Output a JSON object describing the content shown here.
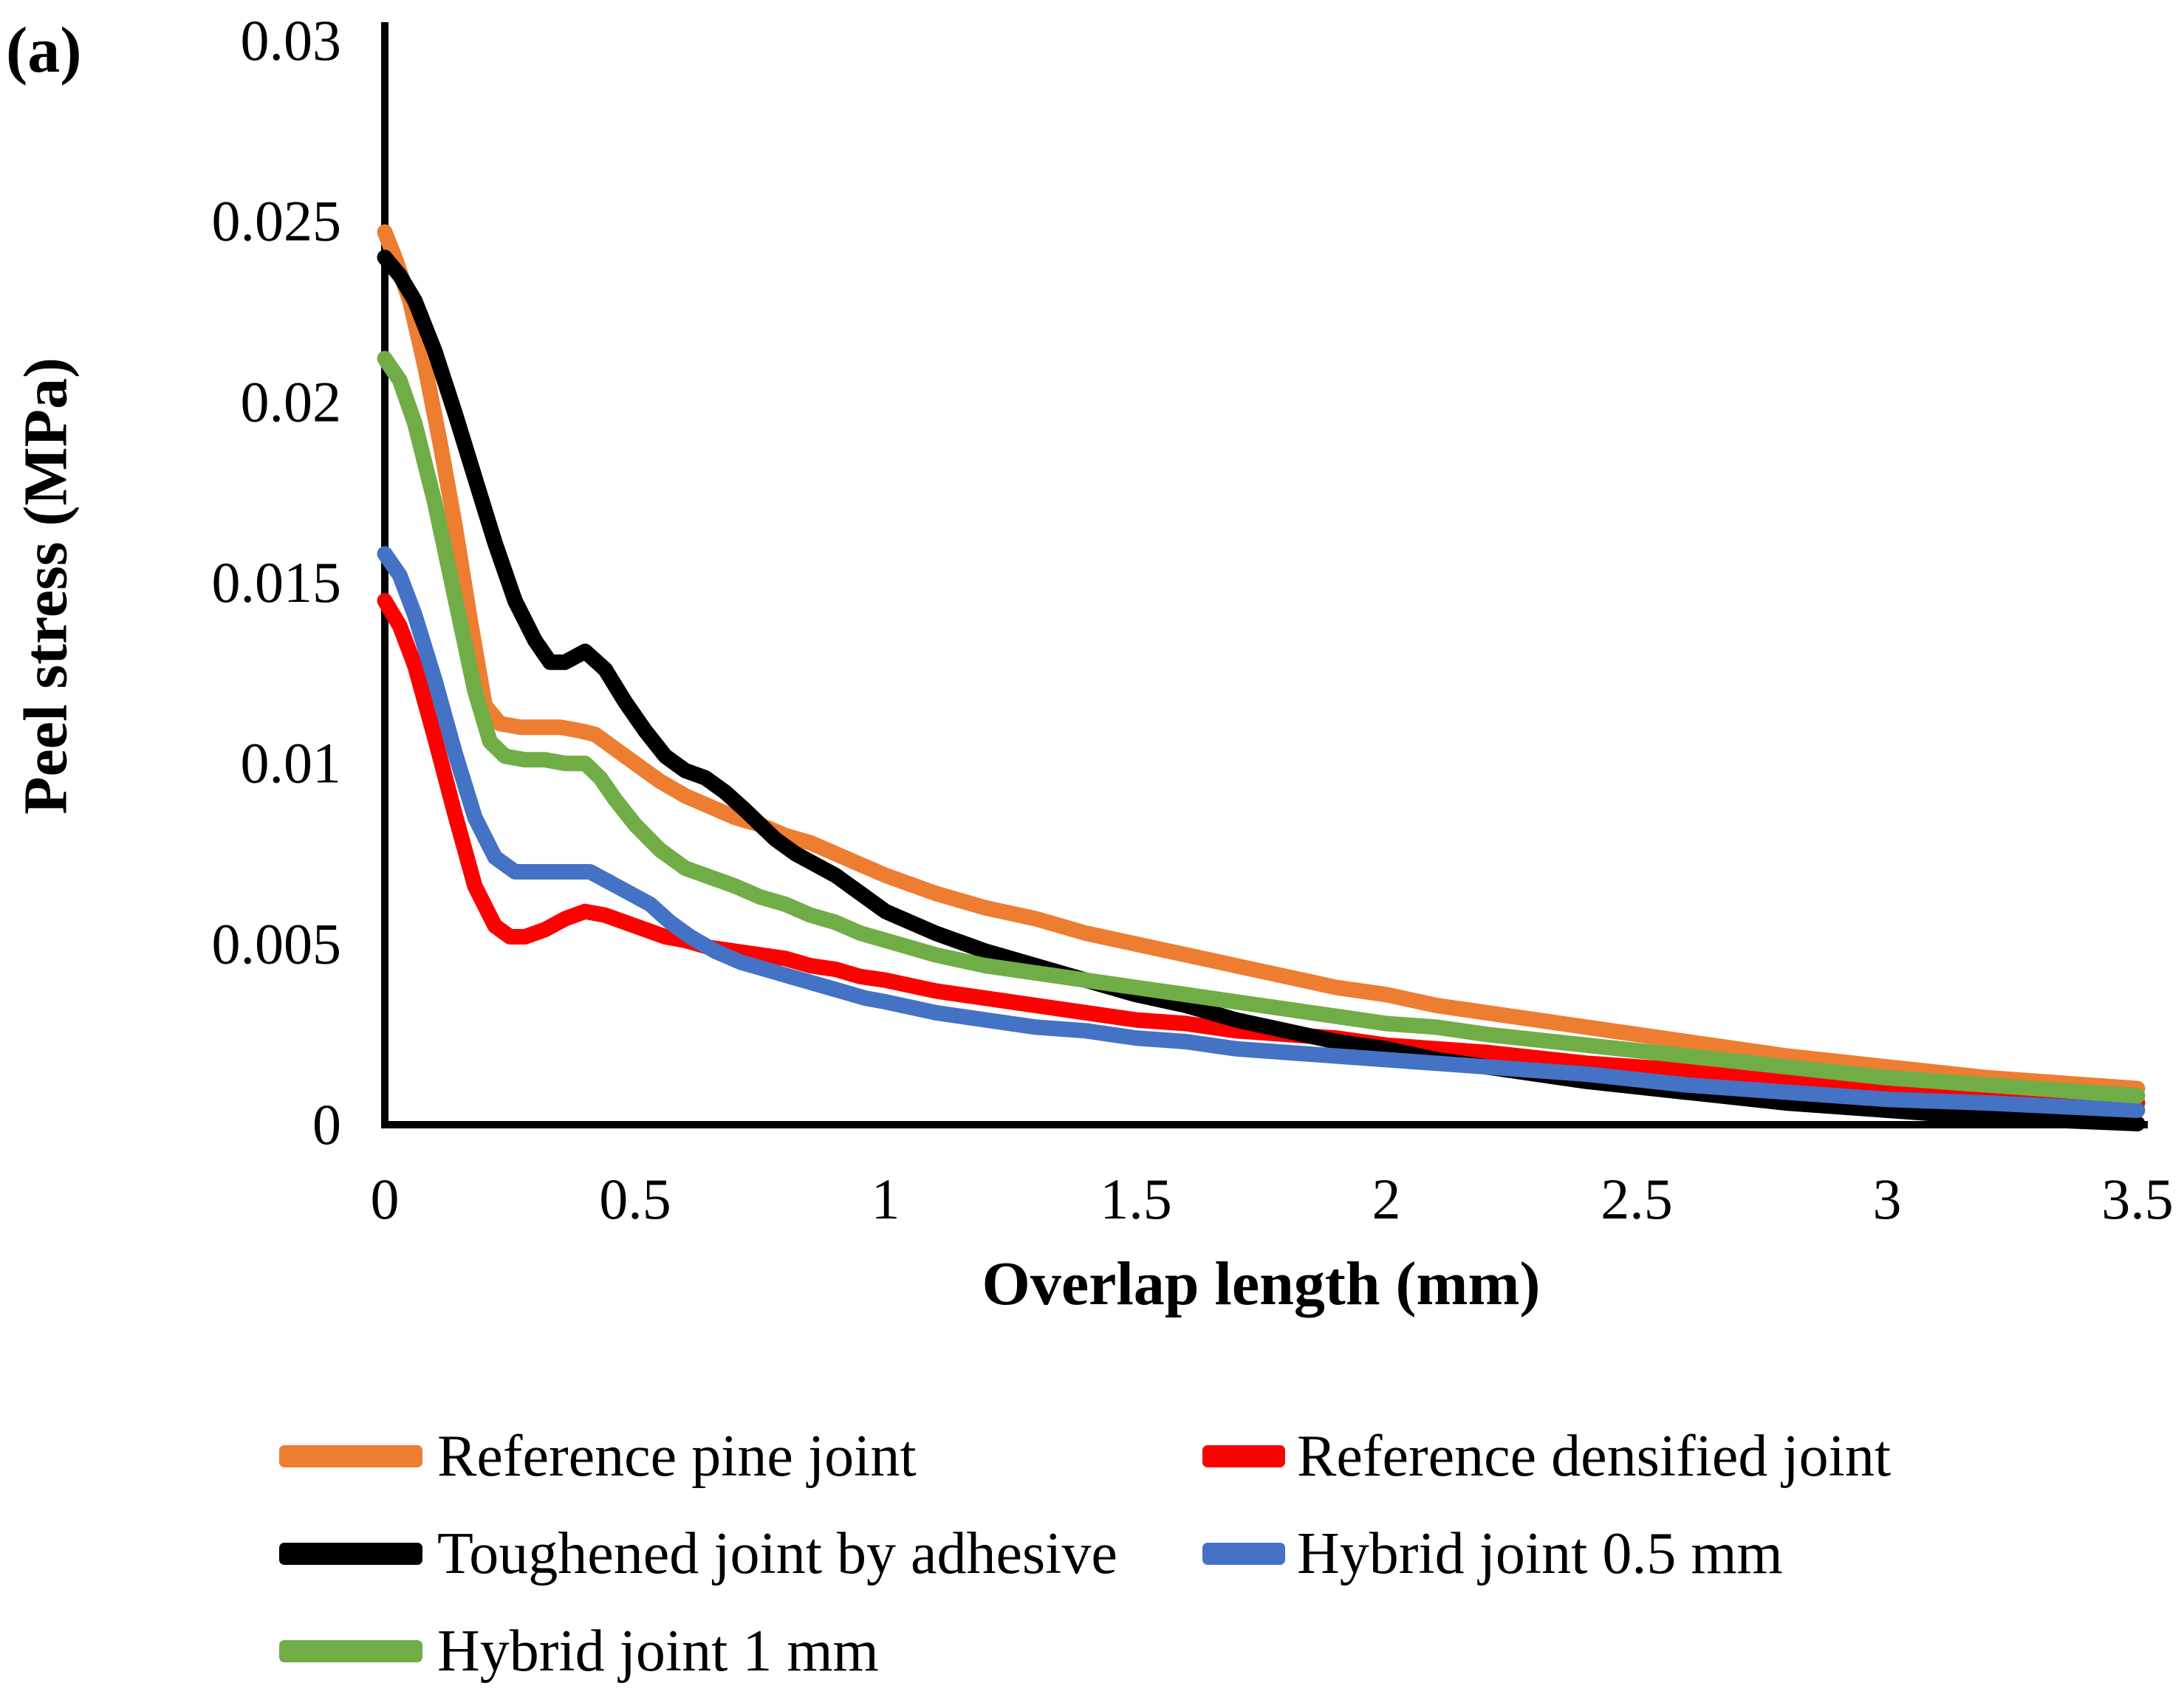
{
  "chart_data": {
    "type": "line",
    "panel_label": "(a)",
    "title": "",
    "xlabel": "Overlap length (mm)",
    "ylabel": "Peel stress (MPa)",
    "xlim": [
      0,
      3.5
    ],
    "ylim": [
      0,
      0.03
    ],
    "x_ticks": [
      0,
      0.5,
      1,
      1.5,
      2,
      2.5,
      3,
      3.5
    ],
    "x_tick_labels": [
      "0",
      "0.5",
      "1",
      "1.5",
      "2",
      "2.5",
      "3",
      "3.5"
    ],
    "y_ticks": [
      0,
      0.005,
      0.01,
      0.015,
      0.02,
      0.025,
      0.03
    ],
    "y_tick_labels": [
      "0",
      "0.005",
      "0.01",
      "0.015",
      "0.02",
      "0.025",
      "0.03"
    ],
    "grid": false,
    "legend_position": "bottom",
    "series": [
      {
        "name": "Reference pine joint",
        "color": "#ED7D31",
        "points": [
          [
            0,
            0.0247
          ],
          [
            0.02,
            0.024
          ],
          [
            0.05,
            0.0228
          ],
          [
            0.08,
            0.021
          ],
          [
            0.11,
            0.0189
          ],
          [
            0.14,
            0.0166
          ],
          [
            0.17,
            0.014
          ],
          [
            0.2,
            0.0116
          ],
          [
            0.23,
            0.0111
          ],
          [
            0.27,
            0.011
          ],
          [
            0.31,
            0.011
          ],
          [
            0.35,
            0.011
          ],
          [
            0.39,
            0.0109
          ],
          [
            0.42,
            0.0108
          ],
          [
            0.46,
            0.0104
          ],
          [
            0.5,
            0.01
          ],
          [
            0.55,
            0.0095
          ],
          [
            0.6,
            0.0091
          ],
          [
            0.65,
            0.0088
          ],
          [
            0.7,
            0.0085
          ],
          [
            0.75,
            0.0083
          ],
          [
            0.8,
            0.008
          ],
          [
            0.85,
            0.0078
          ],
          [
            0.9,
            0.0075
          ],
          [
            0.95,
            0.0072
          ],
          [
            1.0,
            0.0069
          ],
          [
            1.1,
            0.0064
          ],
          [
            1.2,
            0.006
          ],
          [
            1.3,
            0.0057
          ],
          [
            1.4,
            0.0053
          ],
          [
            1.5,
            0.005
          ],
          [
            1.6,
            0.0047
          ],
          [
            1.7,
            0.0044
          ],
          [
            1.8,
            0.0041
          ],
          [
            1.9,
            0.0038
          ],
          [
            2.0,
            0.0036
          ],
          [
            2.1,
            0.0033
          ],
          [
            2.2,
            0.0031
          ],
          [
            2.4,
            0.0027
          ],
          [
            2.6,
            0.0023
          ],
          [
            2.8,
            0.0019
          ],
          [
            3.0,
            0.0016
          ],
          [
            3.2,
            0.0013
          ],
          [
            3.5,
            0.001
          ]
        ]
      },
      {
        "name": "Reference densified joint",
        "color": "#FF0000",
        "points": [
          [
            0,
            0.0145
          ],
          [
            0.03,
            0.0138
          ],
          [
            0.06,
            0.0127
          ],
          [
            0.1,
            0.0107
          ],
          [
            0.14,
            0.0086
          ],
          [
            0.18,
            0.0066
          ],
          [
            0.22,
            0.0055
          ],
          [
            0.25,
            0.0052
          ],
          [
            0.28,
            0.0052
          ],
          [
            0.32,
            0.0054
          ],
          [
            0.36,
            0.0057
          ],
          [
            0.4,
            0.0059
          ],
          [
            0.44,
            0.0058
          ],
          [
            0.48,
            0.0056
          ],
          [
            0.52,
            0.0054
          ],
          [
            0.56,
            0.0052
          ],
          [
            0.6,
            0.0051
          ],
          [
            0.65,
            0.0049
          ],
          [
            0.7,
            0.0048
          ],
          [
            0.75,
            0.0047
          ],
          [
            0.8,
            0.0046
          ],
          [
            0.85,
            0.0044
          ],
          [
            0.9,
            0.0043
          ],
          [
            0.95,
            0.0041
          ],
          [
            1.0,
            0.004
          ],
          [
            1.1,
            0.0037
          ],
          [
            1.2,
            0.0035
          ],
          [
            1.3,
            0.0033
          ],
          [
            1.4,
            0.0031
          ],
          [
            1.5,
            0.0029
          ],
          [
            1.6,
            0.0028
          ],
          [
            1.7,
            0.0026
          ],
          [
            1.8,
            0.0025
          ],
          [
            1.9,
            0.0024
          ],
          [
            2.0,
            0.0022
          ],
          [
            2.1,
            0.0021
          ],
          [
            2.2,
            0.002
          ],
          [
            2.4,
            0.0017
          ],
          [
            2.6,
            0.0015
          ],
          [
            2.8,
            0.0012
          ],
          [
            3.0,
            0.001
          ],
          [
            3.2,
            0.0008
          ],
          [
            3.5,
            0.0006
          ]
        ]
      },
      {
        "name": "Toughened joint by adhesive",
        "color": "#000000",
        "points": [
          [
            0,
            0.024
          ],
          [
            0.03,
            0.0235
          ],
          [
            0.06,
            0.0228
          ],
          [
            0.1,
            0.0214
          ],
          [
            0.14,
            0.0197
          ],
          [
            0.18,
            0.0179
          ],
          [
            0.22,
            0.0161
          ],
          [
            0.26,
            0.0145
          ],
          [
            0.3,
            0.0134
          ],
          [
            0.33,
            0.0128
          ],
          [
            0.36,
            0.0128
          ],
          [
            0.4,
            0.0131
          ],
          [
            0.44,
            0.0126
          ],
          [
            0.48,
            0.0117
          ],
          [
            0.52,
            0.0109
          ],
          [
            0.56,
            0.0102
          ],
          [
            0.6,
            0.0098
          ],
          [
            0.64,
            0.0096
          ],
          [
            0.68,
            0.0092
          ],
          [
            0.72,
            0.0087
          ],
          [
            0.75,
            0.0083
          ],
          [
            0.78,
            0.0079
          ],
          [
            0.82,
            0.0075
          ],
          [
            0.86,
            0.0072
          ],
          [
            0.9,
            0.0069
          ],
          [
            0.95,
            0.0064
          ],
          [
            1.0,
            0.0059
          ],
          [
            1.1,
            0.0053
          ],
          [
            1.2,
            0.0048
          ],
          [
            1.3,
            0.0044
          ],
          [
            1.4,
            0.004
          ],
          [
            1.5,
            0.0036
          ],
          [
            1.6,
            0.0033
          ],
          [
            1.7,
            0.0029
          ],
          [
            1.8,
            0.0026
          ],
          [
            1.9,
            0.0023
          ],
          [
            2.0,
            0.0021
          ],
          [
            2.1,
            0.0018
          ],
          [
            2.2,
            0.0016
          ],
          [
            2.4,
            0.0012
          ],
          [
            2.6,
            0.0009
          ],
          [
            2.8,
            0.0006
          ],
          [
            3.0,
            0.0004
          ],
          [
            3.2,
            0.0002
          ],
          [
            3.5,
            3e-05
          ]
        ]
      },
      {
        "name": "Hybrid joint 0.5 mm",
        "color": "#4472C4",
        "points": [
          [
            0,
            0.0158
          ],
          [
            0.03,
            0.0152
          ],
          [
            0.06,
            0.0141
          ],
          [
            0.1,
            0.0123
          ],
          [
            0.14,
            0.0103
          ],
          [
            0.18,
            0.0085
          ],
          [
            0.22,
            0.0074
          ],
          [
            0.26,
            0.007
          ],
          [
            0.3,
            0.007
          ],
          [
            0.34,
            0.007
          ],
          [
            0.38,
            0.007
          ],
          [
            0.41,
            0.007
          ],
          [
            0.45,
            0.0067
          ],
          [
            0.49,
            0.0064
          ],
          [
            0.53,
            0.0061
          ],
          [
            0.57,
            0.0056
          ],
          [
            0.61,
            0.0052
          ],
          [
            0.66,
            0.0048
          ],
          [
            0.71,
            0.0045
          ],
          [
            0.76,
            0.0043
          ],
          [
            0.81,
            0.0041
          ],
          [
            0.86,
            0.0039
          ],
          [
            0.91,
            0.0037
          ],
          [
            0.96,
            0.0035
          ],
          [
            1.0,
            0.0034
          ],
          [
            1.1,
            0.0031
          ],
          [
            1.2,
            0.0029
          ],
          [
            1.3,
            0.0027
          ],
          [
            1.4,
            0.0026
          ],
          [
            1.5,
            0.0024
          ],
          [
            1.6,
            0.0023
          ],
          [
            1.7,
            0.0021
          ],
          [
            1.8,
            0.002
          ],
          [
            1.9,
            0.0019
          ],
          [
            2.0,
            0.0018
          ],
          [
            2.1,
            0.0017
          ],
          [
            2.2,
            0.0016
          ],
          [
            2.4,
            0.0014
          ],
          [
            2.6,
            0.0011
          ],
          [
            2.8,
            0.0009
          ],
          [
            3.0,
            0.0007
          ],
          [
            3.2,
            0.0006
          ],
          [
            3.5,
            0.0004
          ]
        ]
      },
      {
        "name": "Hybrid joint 1 mm",
        "color": "#70AD47",
        "points": [
          [
            0,
            0.0212
          ],
          [
            0.03,
            0.0206
          ],
          [
            0.06,
            0.0194
          ],
          [
            0.1,
            0.0172
          ],
          [
            0.14,
            0.0146
          ],
          [
            0.18,
            0.012
          ],
          [
            0.21,
            0.0106
          ],
          [
            0.24,
            0.0102
          ],
          [
            0.28,
            0.0101
          ],
          [
            0.32,
            0.0101
          ],
          [
            0.36,
            0.01
          ],
          [
            0.4,
            0.01
          ],
          [
            0.43,
            0.0096
          ],
          [
            0.46,
            0.009
          ],
          [
            0.5,
            0.0083
          ],
          [
            0.55,
            0.0076
          ],
          [
            0.6,
            0.0071
          ],
          [
            0.64,
            0.0069
          ],
          [
            0.7,
            0.0066
          ],
          [
            0.75,
            0.0063
          ],
          [
            0.8,
            0.0061
          ],
          [
            0.85,
            0.0058
          ],
          [
            0.9,
            0.0056
          ],
          [
            0.95,
            0.0053
          ],
          [
            1.0,
            0.0051
          ],
          [
            1.1,
            0.0047
          ],
          [
            1.2,
            0.0044
          ],
          [
            1.3,
            0.0042
          ],
          [
            1.4,
            0.004
          ],
          [
            1.5,
            0.0038
          ],
          [
            1.6,
            0.0036
          ],
          [
            1.7,
            0.0034
          ],
          [
            1.8,
            0.0032
          ],
          [
            1.9,
            0.003
          ],
          [
            2.0,
            0.0028
          ],
          [
            2.1,
            0.0027
          ],
          [
            2.2,
            0.0025
          ],
          [
            2.4,
            0.0022
          ],
          [
            2.6,
            0.0019
          ],
          [
            2.8,
            0.0016
          ],
          [
            3.0,
            0.0013
          ],
          [
            3.2,
            0.0011
          ],
          [
            3.5,
            0.0008
          ]
        ]
      }
    ],
    "legend": {
      "entries": [
        {
          "label": "Reference pine joint",
          "color": "#ED7D31"
        },
        {
          "label": "Reference densified joint",
          "color": "#FF0000"
        },
        {
          "label": "Toughened joint by adhesive",
          "color": "#000000"
        },
        {
          "label": "Hybrid joint 0.5 mm",
          "color": "#4472C4"
        },
        {
          "label": "Hybrid joint 1 mm",
          "color": "#70AD47"
        }
      ]
    },
    "axis_color": "#000000"
  }
}
